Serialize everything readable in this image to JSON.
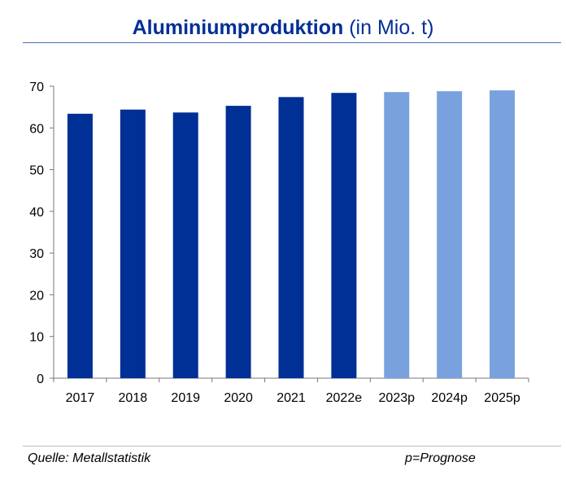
{
  "chart_data": {
    "type": "bar",
    "title": "Aluminiumproduktion",
    "title_unit": "(in Mio. t)",
    "categories": [
      "2017",
      "2018",
      "2019",
      "2020",
      "2021",
      "2022e",
      "2023p",
      "2024p",
      "2025p"
    ],
    "values": [
      63.4,
      64.4,
      63.7,
      65.3,
      67.4,
      68.4,
      68.6,
      68.8,
      69.0
    ],
    "ylim": [
      0,
      70
    ],
    "yticks": [
      0,
      10,
      20,
      30,
      40,
      50,
      60,
      70
    ],
    "grid": false,
    "colors": {
      "actual": "#002f96",
      "forecast": "#78a1de"
    },
    "forecast_from_index": 6
  },
  "footer": {
    "source": "Quelle: Metallstatistik",
    "note": "p=Prognose"
  }
}
